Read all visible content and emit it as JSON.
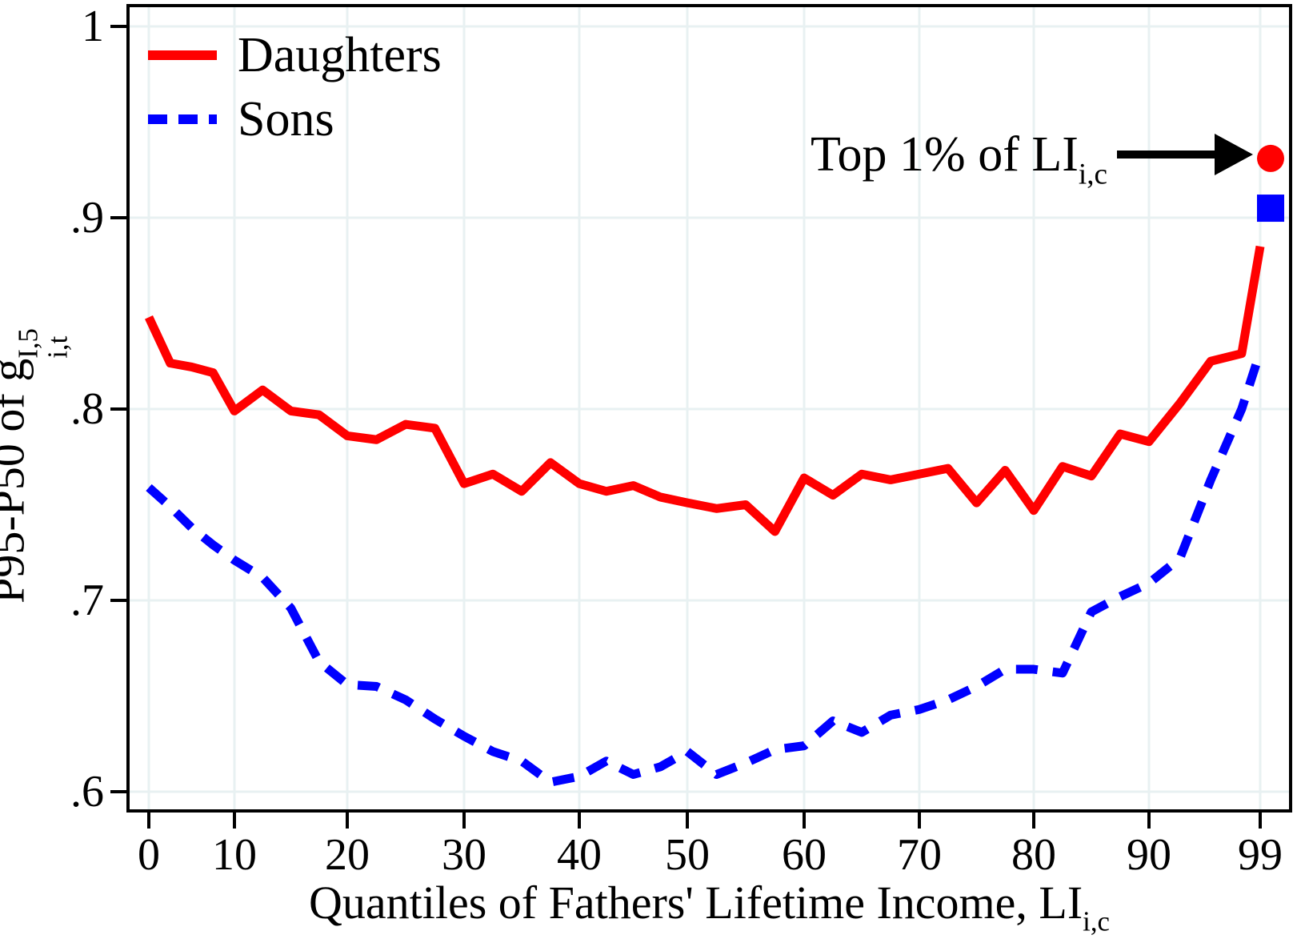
{
  "chart_data": {
    "type": "line",
    "xlabel": "Quantiles of Fathers' Lifetime Income, LI",
    "xlabel_sub": "i,c",
    "ylabel": "P95-P50 of g",
    "ylabel_sup": "I,5",
    "ylabel_sub": "i,t",
    "x_ticks": [
      {
        "label": "0",
        "value": 0
      },
      {
        "label": "10",
        "value": 10
      },
      {
        "label": "20",
        "value": 20
      },
      {
        "label": "30",
        "value": 30
      },
      {
        "label": "40",
        "value": 40
      },
      {
        "label": "50",
        "value": 50
      },
      {
        "label": "60",
        "value": 60
      },
      {
        "label": "70",
        "value": 70
      },
      {
        "label": "80",
        "value": 80
      },
      {
        "label": "90",
        "value": 90
      },
      {
        "label": "99",
        "value": 99
      }
    ],
    "y_ticks": [
      {
        "label": "1",
        "value": 1.0
      },
      {
        "label": ".9",
        "value": 0.9
      },
      {
        "label": ".8",
        "value": 0.8
      },
      {
        "label": ".7",
        "value": 0.7
      },
      {
        "label": ".6",
        "value": 0.6
      }
    ],
    "ylim": [
      0.59,
      1.01
    ],
    "xlim": [
      0,
      99
    ],
    "grid": true,
    "gridline_color": "#e8f1f2",
    "axis_color": "#000000",
    "legend_position": "top-left",
    "x": [
      0,
      2.5,
      5,
      7.5,
      10,
      12.5,
      15,
      17.5,
      20,
      22.5,
      25,
      27.5,
      30,
      32.5,
      35,
      37.5,
      40,
      42.5,
      45,
      47.5,
      50,
      52.5,
      55,
      57.5,
      60,
      62.5,
      65,
      67.5,
      70,
      72.5,
      75,
      77.5,
      80,
      82.5,
      85,
      87.5,
      90,
      92.5,
      95,
      97.5,
      99
    ],
    "series": [
      {
        "name": "Daughters",
        "color": "#ff0000",
        "style": "solid",
        "values": [
          0.848,
          0.824,
          0.822,
          0.819,
          0.799,
          0.81,
          0.799,
          0.797,
          0.786,
          0.784,
          0.792,
          0.79,
          0.761,
          0.766,
          0.757,
          0.772,
          0.761,
          0.757,
          0.76,
          0.754,
          0.751,
          0.748,
          0.75,
          0.736,
          0.764,
          0.755,
          0.766,
          0.763,
          0.766,
          0.769,
          0.751,
          0.768,
          0.747,
          0.77,
          0.765,
          0.787,
          0.783,
          0.803,
          0.825,
          0.829,
          0.885
        ]
      },
      {
        "name": "Sons",
        "color": "#0000ff",
        "style": "dashed",
        "values": [
          0.759,
          0.749,
          0.738,
          0.729,
          0.721,
          0.712,
          0.696,
          0.668,
          0.656,
          0.655,
          0.648,
          0.638,
          0.629,
          0.621,
          0.616,
          0.605,
          0.608,
          0.616,
          0.609,
          0.613,
          0.621,
          0.609,
          0.615,
          0.622,
          0.624,
          0.637,
          0.631,
          0.64,
          0.643,
          0.648,
          0.655,
          0.664,
          0.664,
          0.662,
          0.694,
          0.702,
          0.709,
          0.722,
          0.763,
          0.8,
          0.83
        ]
      }
    ],
    "top1_markers": [
      {
        "series": "Daughters",
        "shape": "circle",
        "color": "#ff0000",
        "value": 0.931
      },
      {
        "series": "Sons",
        "shape": "square",
        "color": "#0000ff",
        "value": 0.905
      }
    ],
    "annotation": {
      "text": "Top 1% of LI",
      "sub": "i,c"
    }
  }
}
